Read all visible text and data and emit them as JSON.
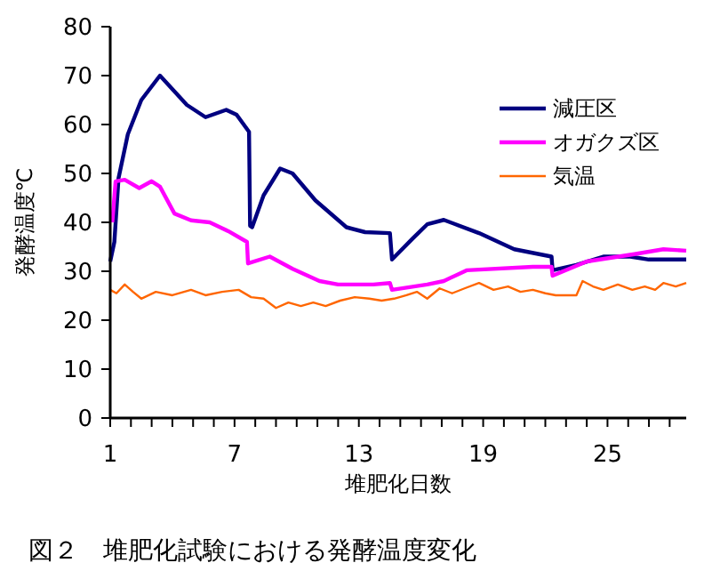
{
  "chart_data": {
    "type": "line",
    "title": "図２　堆肥化試験における発酵温度変化",
    "xlabel": "堆肥化日数",
    "ylabel": "発酵温度℃",
    "xlim": [
      1,
      28.8
    ],
    "ylim": [
      0,
      80
    ],
    "xticks": [
      1,
      {
        "value": 2,
        "label": null
      },
      {
        "value": 3,
        "label": null
      },
      {
        "value": 4,
        "label": null
      },
      {
        "value": 5,
        "label": null
      },
      {
        "value": 6,
        "label": null
      },
      7,
      {
        "value": 8,
        "label": null
      },
      {
        "value": 9,
        "label": null
      },
      {
        "value": 10,
        "label": null
      },
      {
        "value": 11,
        "label": null
      },
      {
        "value": 12,
        "label": null
      },
      13,
      {
        "value": 14,
        "label": null
      },
      {
        "value": 15,
        "label": null
      },
      {
        "value": 16,
        "label": null
      },
      {
        "value": 17,
        "label": null
      },
      {
        "value": 18,
        "label": null
      },
      19,
      {
        "value": 20,
        "label": null
      },
      {
        "value": 21,
        "label": null
      },
      {
        "value": 22,
        "label": null
      },
      {
        "value": 23,
        "label": null
      },
      {
        "value": 24,
        "label": null
      },
      25,
      {
        "value": 26,
        "label": null
      },
      {
        "value": 27,
        "label": null
      },
      {
        "value": 28,
        "label": null
      }
    ],
    "yticks": [
      0,
      10,
      20,
      30,
      40,
      50,
      60,
      70,
      80
    ],
    "grid": false,
    "legend": "top right",
    "marker": "none",
    "line_style": "solid",
    "series": [
      {
        "name": "減圧区",
        "color": "#000080",
        "x": [
          1,
          1.2,
          1.4,
          1.85,
          2.5,
          3.4,
          4.7,
          5.6,
          6.6,
          7.1,
          7.7,
          7.75,
          7.85,
          8.4,
          9.2,
          9.8,
          10.9,
          12.4,
          13.3,
          14.5,
          14.6,
          15.6,
          16.3,
          17.1,
          18.8,
          20.5,
          22.3,
          22.35,
          23.5,
          24.8,
          26.1,
          27,
          28.8
        ],
        "values": [
          32,
          36,
          49,
          58,
          65,
          70,
          64,
          61.5,
          63,
          62,
          58.5,
          39.3,
          39,
          45.5,
          51,
          50,
          44.5,
          39,
          38,
          37.8,
          32.4,
          36.7,
          39.6,
          40.5,
          37.8,
          34.5,
          33,
          30.2,
          31.3,
          33,
          33,
          32.4,
          32.4
        ]
      },
      {
        "name": "オガクズ区",
        "color": "#ff00ff",
        "x": [
          1.1,
          1.26,
          1.7,
          2.4,
          3,
          3.4,
          4.1,
          4.9,
          5.8,
          6.7,
          7.6,
          7.65,
          8.7,
          9.8,
          11.1,
          12,
          13.7,
          14.5,
          14.6,
          16.3,
          17.1,
          18.2,
          21.4,
          22.3,
          22.35,
          24,
          26.3,
          27.7,
          28.8
        ],
        "values": [
          40,
          48.4,
          48.7,
          47,
          48.4,
          47.3,
          41.8,
          40.4,
          40,
          38.2,
          36,
          31.6,
          33,
          30.5,
          28,
          27.3,
          27.3,
          27.6,
          26.2,
          27.3,
          28,
          30.2,
          30.9,
          30.9,
          29.1,
          32,
          33.5,
          34.5,
          34.2
        ]
      },
      {
        "name": "気温",
        "color": "#ff6600",
        "x": [
          1,
          1.3,
          1.7,
          2.1,
          2.5,
          3.2,
          4,
          4.9,
          5.6,
          6.4,
          7.2,
          7.8,
          8.4,
          9,
          9.6,
          10.2,
          10.8,
          11.4,
          12.1,
          12.8,
          13.5,
          14.1,
          14.7,
          15.3,
          15.8,
          16.3,
          16.9,
          17.5,
          18.1,
          18.8,
          19.5,
          20.2,
          20.8,
          21.4,
          22,
          22.5,
          23.5,
          23.8,
          24.3,
          24.8,
          25.5,
          26.2,
          26.8,
          27.3,
          27.7,
          28.3,
          28.8
        ],
        "values": [
          26.2,
          25.5,
          27.3,
          25.8,
          24.4,
          25.8,
          25.1,
          26.2,
          25.1,
          25.8,
          26.2,
          24.7,
          24.4,
          22.5,
          23.6,
          22.9,
          23.6,
          22.9,
          24,
          24.7,
          24.4,
          24,
          24.4,
          25.1,
          25.8,
          24.4,
          26.5,
          25.5,
          26.5,
          27.6,
          26.2,
          26.9,
          25.8,
          26.2,
          25.5,
          25.1,
          25.1,
          28,
          26.9,
          26.2,
          27.3,
          26.2,
          26.9,
          26.2,
          27.6,
          26.9,
          27.6
        ]
      }
    ]
  }
}
